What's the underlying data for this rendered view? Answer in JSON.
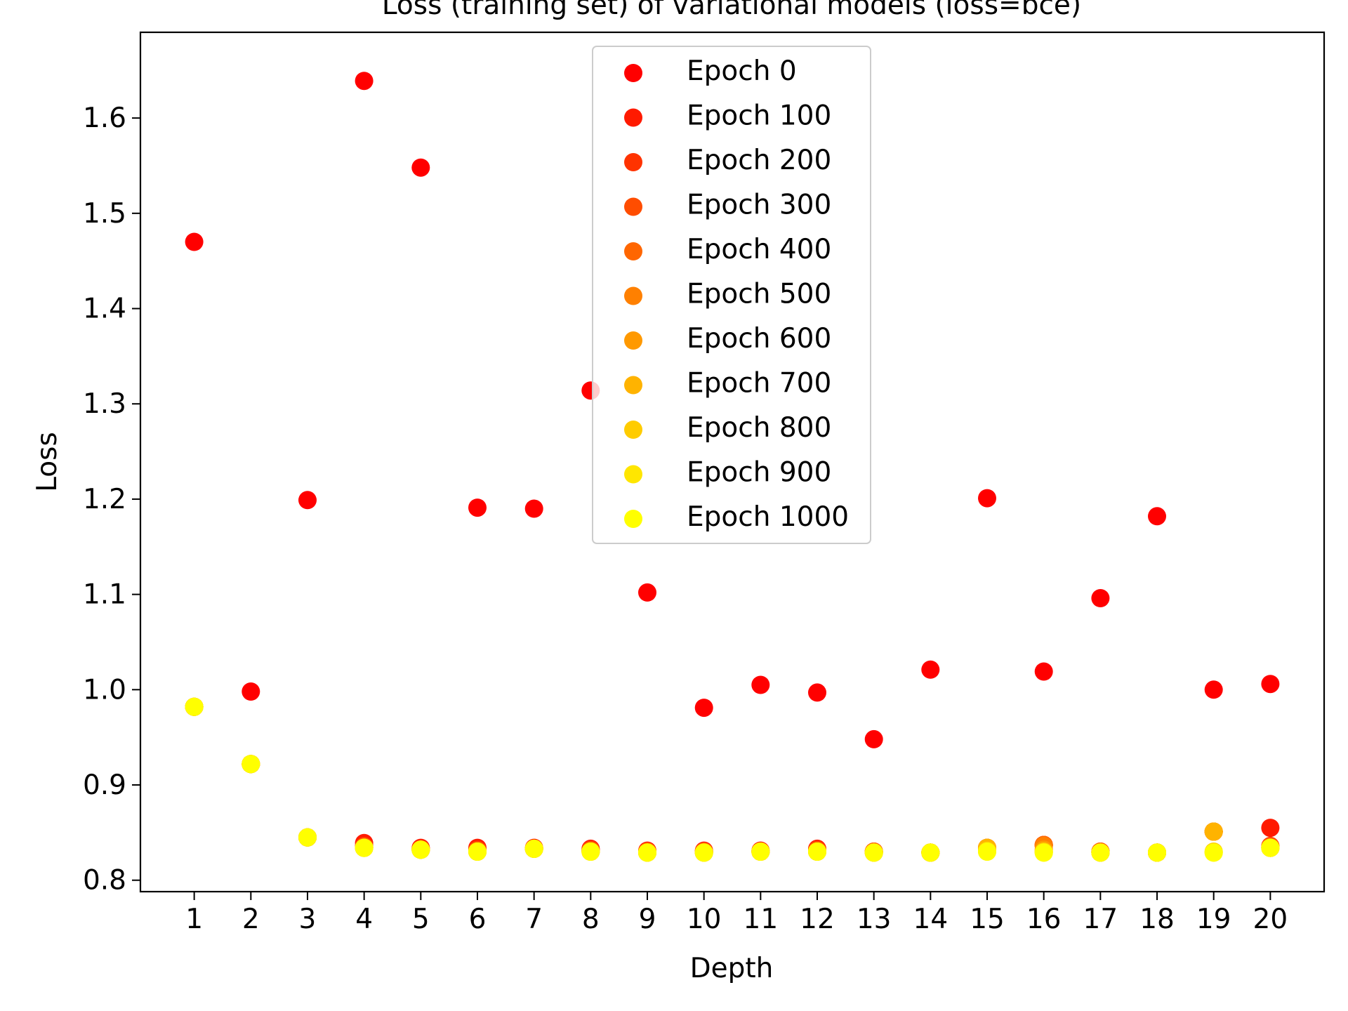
{
  "chart_data": {
    "type": "scatter",
    "title": "Loss (training set) of variational models (loss=bce)",
    "xlabel": "Depth",
    "ylabel": "Loss",
    "xlim": [
      0.05,
      20.95
    ],
    "ylim": [
      0.788,
      1.69
    ],
    "x_ticks": [
      1,
      2,
      3,
      4,
      5,
      6,
      7,
      8,
      9,
      10,
      11,
      12,
      13,
      14,
      15,
      16,
      17,
      18,
      19,
      20
    ],
    "y_ticks": [
      0.8,
      0.9,
      1.0,
      1.1,
      1.2,
      1.3,
      1.4,
      1.5,
      1.6
    ],
    "y_tick_labels": [
      "0.8",
      "0.9",
      "1.0",
      "1.1",
      "1.2",
      "1.3",
      "1.4",
      "1.5",
      "1.6"
    ],
    "grid": false,
    "legend_position": "top-center",
    "x": [
      1,
      2,
      3,
      4,
      5,
      6,
      7,
      8,
      9,
      10,
      11,
      12,
      13,
      14,
      15,
      16,
      17,
      18,
      19,
      20
    ],
    "series": [
      {
        "name": "Epoch 0",
        "color": "#ff0000",
        "values": [
          1.47,
          0.998,
          1.199,
          1.639,
          1.548,
          1.191,
          1.19,
          1.314,
          1.102,
          0.981,
          1.005,
          0.997,
          0.948,
          1.021,
          1.201,
          1.019,
          1.096,
          1.182,
          1.0,
          1.006
        ]
      },
      {
        "name": "Epoch 100",
        "color": "#ff1a00",
        "values": [
          0.982,
          0.922,
          0.845,
          0.839,
          0.834,
          0.834,
          0.834,
          0.833,
          0.831,
          0.831,
          0.831,
          0.833,
          0.83,
          0.829,
          0.834,
          0.837,
          0.83,
          0.829,
          0.851,
          0.855
        ]
      },
      {
        "name": "Epoch 200",
        "color": "#ff3300",
        "values": [
          0.982,
          0.922,
          0.845,
          0.836,
          0.833,
          0.832,
          0.833,
          0.832,
          0.83,
          0.83,
          0.83,
          0.832,
          0.83,
          0.829,
          0.834,
          0.837,
          0.83,
          0.829,
          0.851,
          0.836
        ]
      },
      {
        "name": "Epoch 300",
        "color": "#ff4d00",
        "values": [
          0.982,
          0.922,
          0.845,
          0.835,
          0.832,
          0.831,
          0.833,
          0.831,
          0.83,
          0.83,
          0.83,
          0.831,
          0.83,
          0.829,
          0.834,
          0.837,
          0.83,
          0.829,
          0.851,
          0.835
        ]
      },
      {
        "name": "Epoch 400",
        "color": "#ff6600",
        "values": [
          0.982,
          0.922,
          0.845,
          0.835,
          0.832,
          0.831,
          0.833,
          0.831,
          0.83,
          0.83,
          0.83,
          0.831,
          0.83,
          0.829,
          0.834,
          0.837,
          0.83,
          0.829,
          0.851,
          0.835
        ]
      },
      {
        "name": "Epoch 500",
        "color": "#ff8000",
        "values": [
          0.982,
          0.922,
          0.845,
          0.834,
          0.832,
          0.83,
          0.833,
          0.83,
          0.829,
          0.829,
          0.83,
          0.83,
          0.829,
          0.829,
          0.834,
          0.836,
          0.829,
          0.829,
          0.851,
          0.834
        ]
      },
      {
        "name": "Epoch 600",
        "color": "#ff9900",
        "values": [
          0.982,
          0.922,
          0.845,
          0.834,
          0.832,
          0.83,
          0.833,
          0.83,
          0.829,
          0.829,
          0.83,
          0.83,
          0.829,
          0.829,
          0.834,
          0.832,
          0.829,
          0.829,
          0.851,
          0.834
        ]
      },
      {
        "name": "Epoch 700",
        "color": "#ffb300",
        "values": [
          0.982,
          0.922,
          0.845,
          0.834,
          0.832,
          0.83,
          0.833,
          0.83,
          0.829,
          0.829,
          0.83,
          0.83,
          0.829,
          0.829,
          0.834,
          0.83,
          0.829,
          0.829,
          0.851,
          0.834
        ]
      },
      {
        "name": "Epoch 800",
        "color": "#ffcc00",
        "values": [
          0.982,
          0.922,
          0.845,
          0.834,
          0.832,
          0.83,
          0.833,
          0.83,
          0.829,
          0.829,
          0.83,
          0.83,
          0.829,
          0.829,
          0.831,
          0.83,
          0.829,
          0.829,
          0.83,
          0.834
        ]
      },
      {
        "name": "Epoch 900",
        "color": "#ffe600",
        "values": [
          0.982,
          0.922,
          0.845,
          0.834,
          0.832,
          0.83,
          0.833,
          0.83,
          0.829,
          0.829,
          0.83,
          0.83,
          0.829,
          0.829,
          0.83,
          0.829,
          0.829,
          0.829,
          0.829,
          0.834
        ]
      },
      {
        "name": "Epoch 1000",
        "color": "#ffff00",
        "values": [
          0.982,
          0.922,
          0.845,
          0.834,
          0.832,
          0.83,
          0.833,
          0.83,
          0.829,
          0.829,
          0.83,
          0.83,
          0.829,
          0.829,
          0.83,
          0.829,
          0.829,
          0.829,
          0.829,
          0.834
        ]
      }
    ]
  }
}
